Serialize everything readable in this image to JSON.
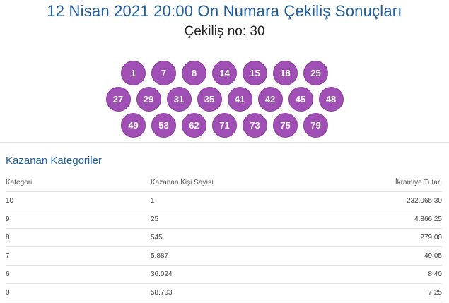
{
  "header": {
    "title": "12 Nisan 2021 20:00 On Numara Çekiliş Sonuçları",
    "draw_number": "Çekiliş no: 30"
  },
  "numbers": {
    "rows": [
      [
        "1",
        "7",
        "8",
        "14",
        "15",
        "18",
        "25"
      ],
      [
        "27",
        "29",
        "31",
        "35",
        "41",
        "42",
        "45",
        "48"
      ],
      [
        "49",
        "53",
        "62",
        "71",
        "73",
        "75",
        "79"
      ]
    ]
  },
  "winners": {
    "section_title": "Kazanan Kategoriler",
    "columns": [
      "Kategori",
      "Kazanan Kişi Sayısı",
      "İkramiye Tutarı"
    ],
    "rows": [
      [
        "10",
        "1",
        "232.065,30"
      ],
      [
        "9",
        "25",
        "4.866,25"
      ],
      [
        "8",
        "545",
        "279,00"
      ],
      [
        "7",
        "5.887",
        "49,05"
      ],
      [
        "6",
        "36.024",
        "8,40"
      ],
      [
        "0",
        "58.703",
        "7,25"
      ]
    ]
  },
  "colors": {
    "ball": "#a050b4",
    "title": "#1f5f9e"
  }
}
